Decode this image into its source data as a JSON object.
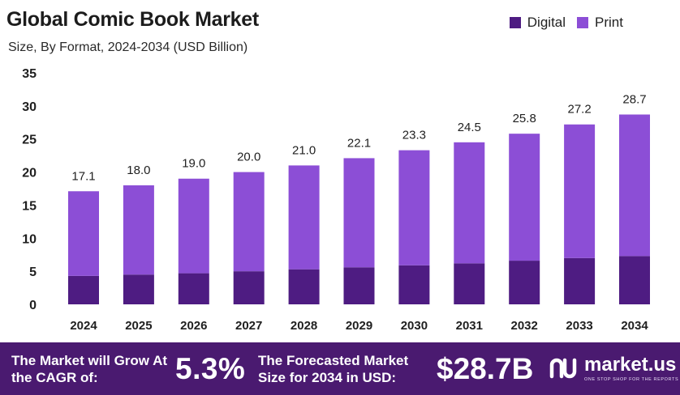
{
  "title": "Global Comic Book Market",
  "subtitle": "Size, By Format, 2024-2034 (USD Billion)",
  "legend": [
    {
      "name": "Digital",
      "color": "#4e1c82"
    },
    {
      "name": "Print",
      "color": "#8c4ed6"
    }
  ],
  "chart_data": {
    "type": "bar",
    "stacked": true,
    "title": "Global Comic Book Market",
    "subtitle": "Size, By Format, 2024-2034 (USD Billion)",
    "categories": [
      "2024",
      "2025",
      "2026",
      "2027",
      "2028",
      "2029",
      "2030",
      "2031",
      "2032",
      "2033",
      "2034"
    ],
    "series": [
      {
        "name": "Digital",
        "color": "#4e1c82",
        "values": [
          4.3,
          4.5,
          4.7,
          5.0,
          5.3,
          5.6,
          5.9,
          6.2,
          6.6,
          7.0,
          7.3
        ]
      },
      {
        "name": "Print",
        "color": "#8c4ed6",
        "values": [
          12.8,
          13.5,
          14.3,
          15.0,
          15.7,
          16.5,
          17.4,
          18.3,
          19.2,
          20.2,
          21.4
        ]
      }
    ],
    "totals": [
      "17.1",
      "18.0",
      "19.0",
      "20.0",
      "21.0",
      "22.1",
      "23.3",
      "24.5",
      "25.8",
      "27.2",
      "28.7"
    ],
    "ylim": [
      0,
      35
    ],
    "yticks": [
      "0",
      "5",
      "10",
      "15",
      "20",
      "25",
      "30",
      "35"
    ],
    "grid": false,
    "legend_position": "top-right"
  },
  "footer": {
    "cagr_text": "The Market will Grow At the CAGR of:",
    "cagr_value": "5.3%",
    "forecast_text": "The Forecasted Market Size for 2034 in USD:",
    "forecast_value": "$28.7B",
    "brand_name": "market.us",
    "brand_tagline": "ONE STOP SHOP FOR THE REPORTS",
    "background": "#4a1a70"
  }
}
